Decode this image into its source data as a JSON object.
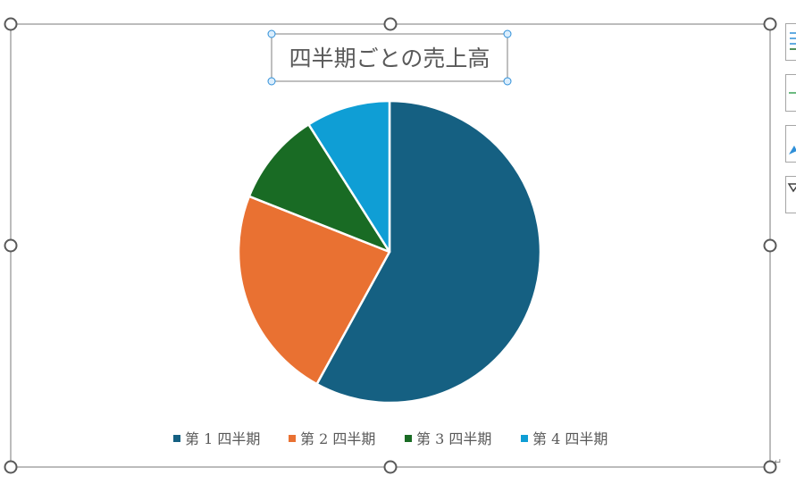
{
  "chart_data": {
    "type": "pie",
    "title": "四半期ごとの売上高",
    "categories": [
      "第 1 四半期",
      "第 2 四半期",
      "第 3 四半期",
      "第 4 四半期"
    ],
    "values": [
      58,
      23,
      10,
      9
    ],
    "colors": [
      "#156082",
      "#e97132",
      "#196b24",
      "#0f9ed5"
    ],
    "legend": "bottom"
  },
  "side_buttons": [
    {
      "icon": "chart-elements-icon"
    },
    {
      "icon": "chart-styles-icon"
    },
    {
      "icon": "chart-filters-icon"
    },
    {
      "icon": "chart-layout-icon"
    }
  ]
}
